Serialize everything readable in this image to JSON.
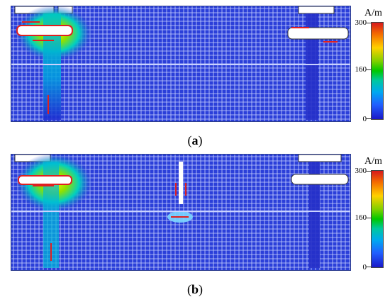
{
  "figure": {
    "panels": [
      {
        "id": "a",
        "caption_open": "(",
        "caption_label": "a",
        "caption_close": ")",
        "colorbar": {
          "unit": "A/m",
          "ticks": [
            "300",
            "160",
            "0"
          ],
          "range": [
            0,
            300
          ]
        }
      },
      {
        "id": "b",
        "caption_open": "(",
        "caption_label": "b",
        "caption_close": ")",
        "colorbar": {
          "unit": "A/m",
          "ticks": [
            "300",
            "160",
            "0"
          ],
          "range": [
            0,
            300
          ]
        }
      }
    ],
    "colors": {
      "field_low": "#1f2bd6",
      "field_mid": "#00c8c8",
      "field_high": "#e8e800",
      "arrow": "#e02020",
      "conductor": "#ffffff"
    }
  }
}
